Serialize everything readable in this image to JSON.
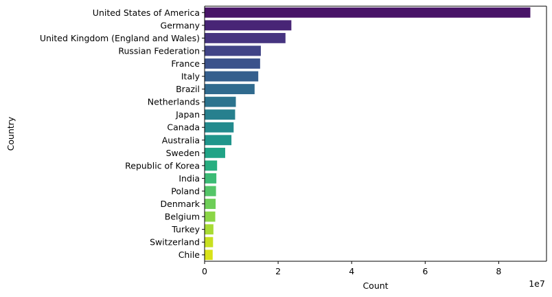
{
  "chart_data": {
    "type": "bar",
    "orientation": "horizontal",
    "categories": [
      "United States of America",
      "Germany",
      "United Kingdom (England and Wales)",
      "Russian Federation",
      "France",
      "Italy",
      "Brazil",
      "Netherlands",
      "Japan",
      "Canada",
      "Australia",
      "Sweden",
      "Republic of Korea",
      "India",
      "Poland",
      "Denmark",
      "Belgium",
      "Turkey",
      "Switzerland",
      "Chile"
    ],
    "values": [
      88600000,
      23600000,
      22000000,
      15300000,
      15100000,
      14600000,
      13600000,
      8500000,
      8300000,
      7900000,
      7300000,
      5600000,
      3400000,
      3200000,
      3100000,
      3000000,
      2900000,
      2400000,
      2300000,
      2200000
    ],
    "colors": [
      "#481467",
      "#482576",
      "#463480",
      "#414487",
      "#3b528b",
      "#355f8d",
      "#306a8e",
      "#2c738e",
      "#27808e",
      "#238a8d",
      "#1f958b",
      "#20a386",
      "#28ae80",
      "#3bbb75",
      "#54c568",
      "#6ece58",
      "#8bd646",
      "#a8db34",
      "#c8e020",
      "#d8e219"
    ],
    "xlabel": "Count",
    "ylabel": "Country",
    "xlim": [
      0,
      93000000
    ],
    "xticks": [
      0,
      20000000,
      40000000,
      60000000,
      80000000
    ],
    "xtick_labels": [
      "0",
      "2",
      "4",
      "6",
      "8"
    ],
    "offset_label": "1e7",
    "grid": false,
    "legend": "none"
  }
}
